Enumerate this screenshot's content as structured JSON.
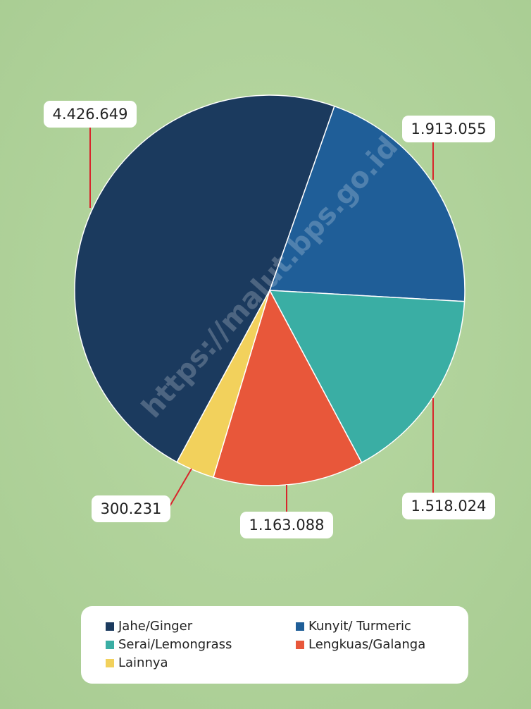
{
  "chart_data": {
    "type": "pie",
    "watermark": "https://malut.bps.go.id",
    "categories": [
      "Jahe/Ginger",
      "Kunyit/ Turmeric",
      "Serai/Lemongrass",
      "Lengkuas/Galanga",
      "Lainnya"
    ],
    "values": [
      4426649,
      1913055,
      1518024,
      1163088,
      300231
    ],
    "value_labels": [
      "4.426.649",
      "1.913.055",
      "1.518.024",
      "1.163.088",
      "300.231"
    ],
    "colors": [
      "#1b3a5e",
      "#1f5e98",
      "#3aaea4",
      "#e8573a",
      "#f2d15c"
    ]
  }
}
